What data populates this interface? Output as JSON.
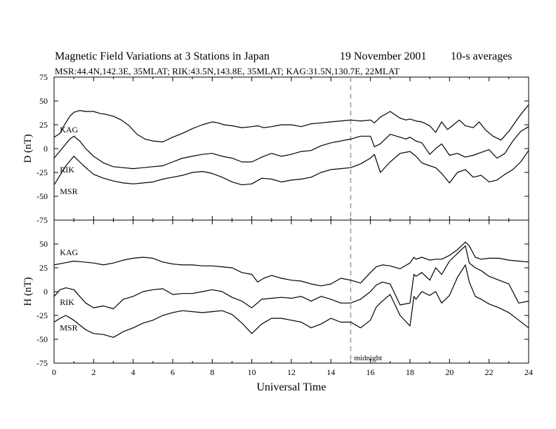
{
  "header": {
    "title": "Magnetic Field Variations at 3 Stations in Japan",
    "date": "19 November 2001",
    "averaging": "10-s averages",
    "stations": "MSR:44.4N,142.3E, 35MLAT;  RIK:43.5N,143.8E, 35MLAT;  KAG:31.5N,130.7E, 22MLAT"
  },
  "chart_data": [
    {
      "type": "line",
      "panel": "D",
      "ylabel": "D (nT)",
      "ylim": [
        -75,
        75
      ],
      "yticks": [
        -75,
        -50,
        -25,
        0,
        25,
        50,
        75
      ],
      "xlim": [
        0,
        24
      ],
      "grid": false,
      "series": [
        {
          "name": "KAG",
          "x": [
            0,
            0.3,
            0.5,
            0.8,
            1,
            1.3,
            1.6,
            2,
            2.3,
            2.6,
            3,
            3.4,
            3.8,
            4.2,
            4.6,
            5,
            5.5,
            6,
            6.5,
            7,
            7.5,
            8,
            8.3,
            8.6,
            9,
            9.5,
            10,
            10.3,
            10.6,
            11,
            11.5,
            12,
            12.5,
            13,
            13.5,
            14,
            14.5,
            15,
            15.5,
            16,
            16.2,
            16.5,
            17,
            17.5,
            17.8,
            18,
            18.3,
            18.6,
            19,
            19.3,
            19.6,
            19.9,
            20.2,
            20.5,
            20.8,
            21.2,
            21.5,
            21.8,
            22.2,
            22.6,
            23,
            23.5,
            24
          ],
          "values": [
            12,
            16,
            24,
            34,
            38,
            40,
            39,
            39,
            37,
            36,
            34,
            30,
            24,
            15,
            10,
            8,
            7,
            12,
            16,
            21,
            25,
            28,
            27,
            25,
            24,
            22,
            23,
            24,
            22,
            23,
            25,
            25,
            23,
            26,
            27,
            28,
            29,
            30,
            29,
            30,
            27,
            33,
            39,
            32,
            30,
            31,
            29,
            28,
            24,
            17,
            28,
            20,
            25,
            30,
            24,
            22,
            28,
            20,
            13,
            9,
            18,
            33,
            46
          ]
        },
        {
          "name": "RIK",
          "x": [
            0,
            0.4,
            0.8,
            1,
            1.3,
            1.6,
            2,
            2.5,
            3,
            3.5,
            4,
            4.5,
            5,
            5.5,
            6,
            6.5,
            7,
            7.5,
            8,
            8.5,
            9,
            9.5,
            10,
            10.5,
            11,
            11.5,
            12,
            12.5,
            13,
            13.5,
            14,
            14.5,
            15,
            15.5,
            16,
            16.2,
            16.5,
            17,
            17.5,
            17.8,
            18,
            18.3,
            18.6,
            19,
            19.3,
            19.6,
            20,
            20.4,
            20.8,
            21.2,
            21.6,
            22,
            22.4,
            22.8,
            23.2,
            23.6,
            24
          ],
          "values": [
            -10,
            0,
            10,
            13,
            8,
            0,
            -8,
            -15,
            -19,
            -20,
            -21,
            -20,
            -19,
            -18,
            -14,
            -10,
            -8,
            -6,
            -5,
            -8,
            -10,
            -14,
            -14,
            -9,
            -5,
            -8,
            -6,
            -3,
            -2,
            3,
            6,
            8,
            10,
            13,
            13,
            2,
            5,
            15,
            12,
            10,
            12,
            8,
            6,
            -6,
            0,
            5,
            -7,
            -5,
            -9,
            -7,
            -4,
            -1,
            -10,
            -5,
            8,
            18,
            23
          ]
        },
        {
          "name": "MSR",
          "x": [
            0,
            0.3,
            0.6,
            1,
            1.3,
            1.6,
            2,
            2.5,
            3,
            3.5,
            4,
            4.5,
            5,
            5.5,
            6,
            6.5,
            7,
            7.5,
            8,
            8.5,
            9,
            9.5,
            10,
            10.5,
            11,
            11.5,
            12,
            12.5,
            13,
            13.5,
            14,
            14.5,
            15,
            15.5,
            16,
            16.2,
            16.5,
            17,
            17.5,
            18,
            18.3,
            18.6,
            19,
            19.3,
            19.6,
            20,
            20.4,
            20.8,
            21.2,
            21.6,
            22,
            22.4,
            22.8,
            23.2,
            23.6,
            24
          ],
          "values": [
            -38,
            -28,
            -18,
            -8,
            -14,
            -20,
            -27,
            -31,
            -34,
            -36,
            -37,
            -36,
            -35,
            -32,
            -30,
            -28,
            -25,
            -24,
            -26,
            -30,
            -35,
            -38,
            -37,
            -31,
            -32,
            -35,
            -33,
            -32,
            -30,
            -25,
            -22,
            -21,
            -20,
            -16,
            -10,
            -6,
            -25,
            -14,
            -5,
            -3,
            -8,
            -15,
            -18,
            -20,
            -26,
            -36,
            -25,
            -22,
            -30,
            -28,
            -35,
            -33,
            -27,
            -22,
            -14,
            -2
          ]
        }
      ],
      "annotations": [
        "KAG",
        "RIK",
        "MSR"
      ]
    },
    {
      "type": "line",
      "panel": "H",
      "ylabel": "H (nT)",
      "ylim": [
        -75,
        75
      ],
      "yticks": [
        -75,
        -50,
        -25,
        0,
        25,
        50
      ],
      "xlim": [
        0,
        24
      ],
      "xlabel": "Universal Time",
      "xticks": [
        0,
        2,
        4,
        6,
        8,
        10,
        12,
        14,
        16,
        18,
        20,
        22,
        24
      ],
      "grid": false,
      "series": [
        {
          "name": "KAG",
          "x": [
            0,
            0.5,
            1,
            1.5,
            2,
            2.5,
            3,
            3.5,
            4,
            4.5,
            5,
            5.5,
            6,
            6.5,
            7,
            7.5,
            8,
            8.5,
            9,
            9.5,
            10,
            10.3,
            10.6,
            11,
            11.5,
            12,
            12.5,
            13,
            13.5,
            14,
            14.5,
            15,
            15.5,
            16,
            16.3,
            16.6,
            17,
            17.5,
            18,
            18.2,
            18.3,
            18.6,
            19,
            19.3,
            19.6,
            20,
            20.4,
            20.8,
            21,
            21.3,
            21.6,
            22,
            22.5,
            23,
            23.5,
            24
          ],
          "values": [
            28,
            30,
            32,
            31,
            30,
            28,
            30,
            33,
            35,
            36,
            35,
            31,
            29,
            28,
            28,
            27,
            27,
            26,
            25,
            20,
            18,
            10,
            14,
            17,
            14,
            12,
            11,
            8,
            6,
            8,
            14,
            12,
            9,
            20,
            26,
            28,
            27,
            24,
            30,
            36,
            34,
            36,
            33,
            34,
            34,
            38,
            44,
            52,
            48,
            36,
            34,
            35,
            35,
            33,
            32,
            31
          ]
        },
        {
          "name": "RIK",
          "x": [
            0,
            0.3,
            0.6,
            1,
            1.3,
            1.6,
            2,
            2.5,
            3,
            3.5,
            4,
            4.5,
            5,
            5.5,
            6,
            6.5,
            7,
            7.5,
            8,
            8.5,
            9,
            9.5,
            10,
            10.5,
            11,
            11.5,
            12,
            12.5,
            13,
            13.5,
            14,
            14.5,
            15,
            15.5,
            16,
            16.3,
            16.6,
            17,
            17.5,
            18,
            18.2,
            18.3,
            18.6,
            19,
            19.3,
            19.6,
            20,
            20.4,
            20.8,
            21,
            21.3,
            21.6,
            22,
            22.5,
            23,
            23.5,
            24
          ],
          "values": [
            -5,
            2,
            4,
            2,
            -5,
            -12,
            -17,
            -15,
            -18,
            -8,
            -5,
            0,
            2,
            3,
            -3,
            -2,
            -2,
            0,
            2,
            0,
            -6,
            -10,
            -17,
            -8,
            -7,
            -6,
            -7,
            -5,
            -10,
            -5,
            -8,
            -12,
            -12,
            -8,
            0,
            7,
            10,
            8,
            -14,
            -12,
            18,
            16,
            20,
            12,
            25,
            18,
            32,
            40,
            48,
            30,
            25,
            22,
            16,
            12,
            8,
            -12,
            -10
          ]
        },
        {
          "name": "MSR",
          "x": [
            0,
            0.3,
            0.6,
            1,
            1.3,
            1.6,
            2,
            2.5,
            3,
            3.5,
            4,
            4.5,
            5,
            5.5,
            6,
            6.5,
            7,
            7.5,
            8,
            8.5,
            9,
            9.5,
            10,
            10.5,
            11,
            11.5,
            12,
            12.5,
            13,
            13.5,
            14,
            14.5,
            15,
            15.5,
            16,
            16.3,
            16.6,
            17,
            17.5,
            18,
            18.2,
            18.3,
            18.6,
            19,
            19.3,
            19.6,
            20,
            20.4,
            20.8,
            21,
            21.3,
            21.6,
            22,
            22.5,
            23,
            23.5,
            24
          ],
          "values": [
            -32,
            -28,
            -25,
            -30,
            -35,
            -40,
            -44,
            -45,
            -48,
            -42,
            -38,
            -33,
            -30,
            -25,
            -22,
            -20,
            -21,
            -22,
            -21,
            -20,
            -24,
            -33,
            -44,
            -34,
            -28,
            -28,
            -30,
            -32,
            -38,
            -34,
            -28,
            -32,
            -32,
            -38,
            -30,
            -16,
            -10,
            -3,
            -25,
            -36,
            -5,
            -8,
            0,
            -4,
            0,
            -12,
            -4,
            15,
            28,
            10,
            -5,
            -8,
            -13,
            -17,
            -22,
            -30,
            -38
          ]
        }
      ],
      "annotations": [
        "KAG",
        "RIK",
        "MSR",
        "midnight"
      ]
    }
  ]
}
